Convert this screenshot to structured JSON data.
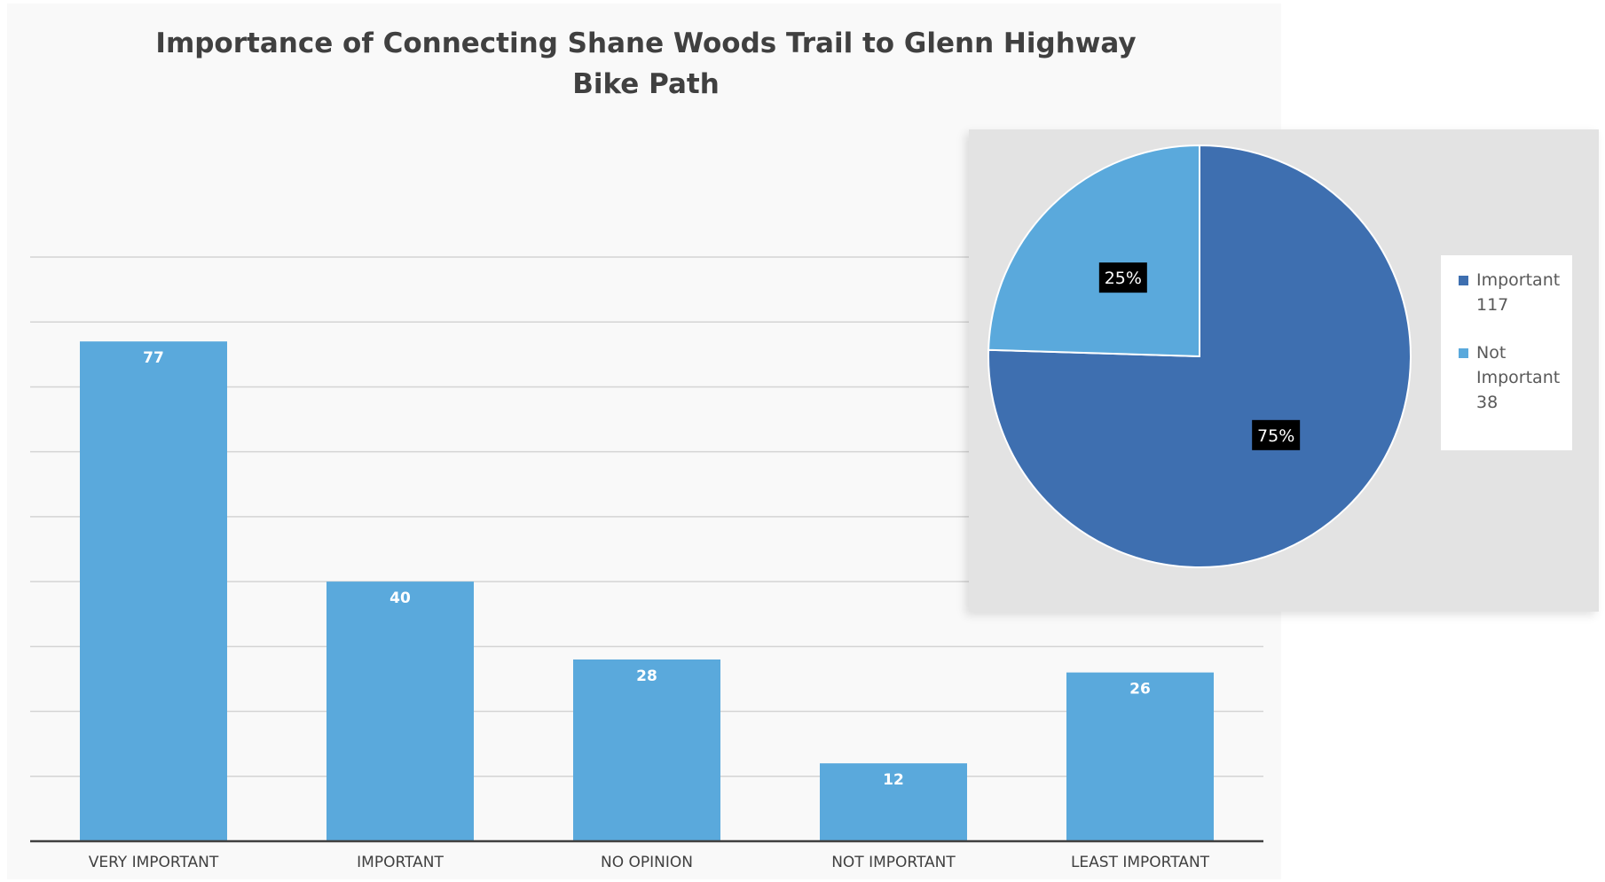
{
  "bar_chart": {
    "title": "Importance of Connecting Shane Woods Trail to Glenn Highway Bike Path"
  },
  "pie_chart": {},
  "colors": {
    "bar": "#5aa9dc",
    "pie_important": "#3e6fb0",
    "pie_not_important": "#5aa9dc",
    "gridline": "#d4d4d4",
    "axis": "#404040",
    "category_text": "#404040",
    "data_label": "#ffffff",
    "pie_label_bg": "#000000"
  },
  "chart_data": [
    {
      "type": "bar",
      "title": "Importance of Connecting Shane Woods Trail to Glenn Highway Bike Path",
      "categories": [
        "VERY IMPORTANT",
        "IMPORTANT",
        "NO OPINION",
        "NOT IMPORTANT",
        "LEAST IMPORTANT"
      ],
      "values": [
        77,
        40,
        28,
        12,
        26
      ],
      "data_labels": [
        "77",
        "40",
        "28",
        "12",
        "26"
      ],
      "xlabel": "",
      "ylabel": "",
      "ylim": [
        0,
        90
      ],
      "y_gridline_step": 10,
      "grid": true,
      "y_tick_labels_shown": false,
      "legend": "none"
    },
    {
      "type": "pie",
      "series": [
        {
          "name": "Important",
          "value": 117,
          "percent_label": "75%"
        },
        {
          "name": "Not Important",
          "value": 38,
          "percent_label": "25%"
        }
      ],
      "legend_entries": [
        {
          "label": "Important",
          "value": "117"
        },
        {
          "label": "Not Important",
          "value": "38"
        }
      ],
      "legend": "right",
      "start_angle": "12 o'clock",
      "direction": "clockwise"
    }
  ]
}
